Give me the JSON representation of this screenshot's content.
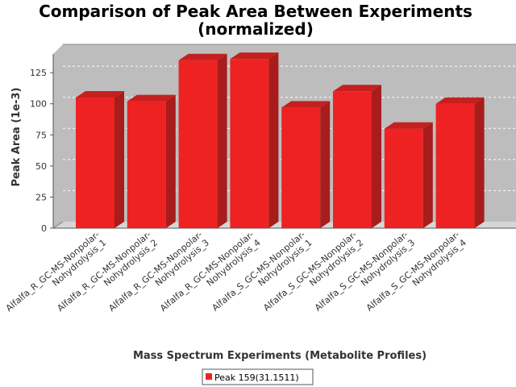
{
  "chart_data": {
    "type": "bar",
    "title": "Comparison of Peak Area Between Experiments",
    "subtitle": "(normalized)",
    "xlabel": "Mass Spectrum Experiments (Metabolite Profiles)",
    "ylabel": "Peak Area (1e-3)",
    "ylim": [
      0,
      140
    ],
    "yticks": [
      "0",
      "25",
      "50",
      "75",
      "100",
      "125"
    ],
    "grid": true,
    "legend_position": "bottom",
    "bar_color": "#ee2222",
    "categories": [
      [
        "Alfalfa_R_GC-MS-Nonpolar-",
        "Nohydrolysis_1"
      ],
      [
        "Alfalfa_R_GC-MS-Nonpolar-",
        "Nohydrolysis_2"
      ],
      [
        "Alfalfa_R_GC-MS-Nonpolar-",
        "Nohydrolysis_3"
      ],
      [
        "Alfalfa_R_GC-MS-Nonpolar-",
        "Nohydrolysis_4"
      ],
      [
        "Alfalfa_S_GC-MS-Nonpolar-",
        "Nohydrolysis_1"
      ],
      [
        "Alfalfa_S_GC-MS-Nonpolar-",
        "Nohydrolysis_2"
      ],
      [
        "Alfalfa_S_GC-MS-Nonpolar-",
        "Nohydrolysis_3"
      ],
      [
        "Alfalfa_S_GC-MS-Nonpolar-",
        "Nohydrolysis_4"
      ]
    ],
    "series": [
      {
        "name": "Peak 159(31.1511)",
        "values": [
          105,
          102,
          135,
          136,
          97,
          110,
          80,
          100
        ]
      }
    ]
  }
}
